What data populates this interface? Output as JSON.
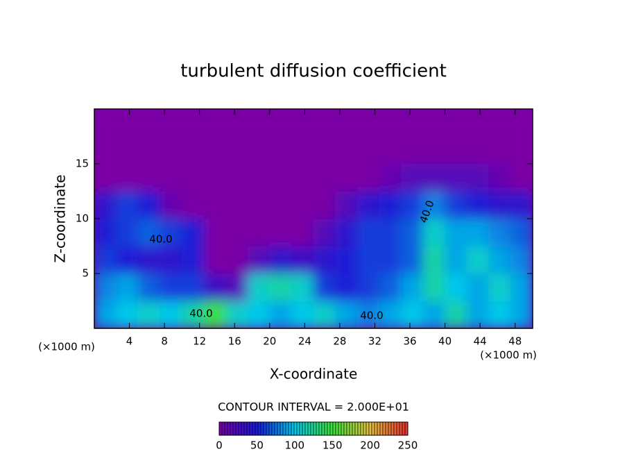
{
  "chart_data": {
    "type": "heatmap",
    "title": "turbulent diffusion coefficient",
    "x_label": "X-coordinate",
    "y_label": "Z-coordinate",
    "x_unit": "(×1000 m)",
    "y_unit": "(×1000 m)",
    "xlim": [
      0,
      50
    ],
    "ylim": [
      0,
      20
    ],
    "xticks": [
      4,
      8,
      12,
      16,
      20,
      24,
      28,
      32,
      36,
      40,
      44,
      48
    ],
    "yticks": [
      5,
      10,
      15
    ],
    "contour_interval": "CONTOUR INTERVAL = 2.000E+01",
    "annotations": [
      "40.0",
      "40.0",
      "40.0",
      "40.0"
    ],
    "colorbar_ticks": [
      0,
      50,
      100,
      150,
      200,
      250
    ],
    "colorscale": [
      [
        0,
        "#7a00a6"
      ],
      [
        50,
        "#1a1ad6"
      ],
      [
        100,
        "#00c8ea"
      ],
      [
        150,
        "#3ee03e"
      ],
      [
        200,
        "#e2c040"
      ],
      [
        250,
        "#e03030"
      ]
    ],
    "z": [
      [
        90,
        100,
        110,
        100,
        120,
        150,
        110,
        100,
        90,
        100,
        110,
        90,
        80,
        90,
        100,
        90,
        120,
        90,
        100,
        90
      ],
      [
        80,
        90,
        70,
        60,
        60,
        30,
        20,
        110,
        120,
        110,
        60,
        50,
        60,
        70,
        90,
        120,
        100,
        90,
        110,
        90
      ],
      [
        60,
        50,
        40,
        40,
        50,
        0,
        0,
        20,
        40,
        30,
        40,
        50,
        60,
        60,
        70,
        120,
        90,
        110,
        90,
        80
      ],
      [
        50,
        60,
        70,
        60,
        50,
        0,
        0,
        0,
        0,
        0,
        20,
        40,
        60,
        60,
        70,
        110,
        90,
        90,
        80,
        70
      ],
      [
        40,
        60,
        50,
        10,
        0,
        0,
        0,
        0,
        0,
        0,
        0,
        20,
        40,
        50,
        60,
        80,
        60,
        50,
        40,
        40
      ],
      [
        0,
        0,
        0,
        0,
        0,
        0,
        0,
        0,
        0,
        0,
        0,
        0,
        0,
        10,
        20,
        20,
        20,
        20,
        10,
        0
      ],
      [
        0,
        0,
        0,
        0,
        0,
        0,
        0,
        0,
        0,
        0,
        0,
        0,
        0,
        0,
        0,
        0,
        0,
        0,
        0,
        0
      ],
      [
        0,
        0,
        0,
        0,
        0,
        0,
        0,
        0,
        0,
        0,
        0,
        0,
        0,
        0,
        0,
        0,
        0,
        0,
        0,
        0
      ]
    ]
  }
}
